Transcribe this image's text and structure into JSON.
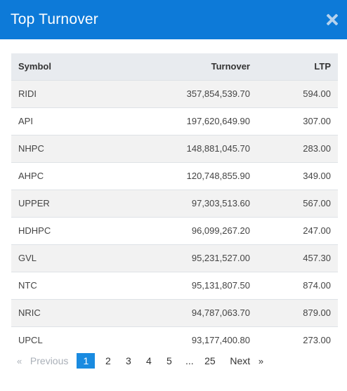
{
  "modal": {
    "title": "Top Turnover"
  },
  "table": {
    "headers": {
      "symbol": "Symbol",
      "turnover": "Turnover",
      "ltp": "LTP"
    },
    "rows": [
      {
        "symbol": "RIDI",
        "turnover": "357,854,539.70",
        "ltp": "594.00"
      },
      {
        "symbol": "API",
        "turnover": "197,620,649.90",
        "ltp": "307.00"
      },
      {
        "symbol": "NHPC",
        "turnover": "148,881,045.70",
        "ltp": "283.00"
      },
      {
        "symbol": "AHPC",
        "turnover": "120,748,855.90",
        "ltp": "349.00"
      },
      {
        "symbol": "UPPER",
        "turnover": "97,303,513.60",
        "ltp": "567.00"
      },
      {
        "symbol": "HDHPC",
        "turnover": "96,099,267.20",
        "ltp": "247.00"
      },
      {
        "symbol": "GVL",
        "turnover": "95,231,527.00",
        "ltp": "457.30"
      },
      {
        "symbol": "NTC",
        "turnover": "95,131,807.50",
        "ltp": "874.00"
      },
      {
        "symbol": "NRIC",
        "turnover": "94,787,063.70",
        "ltp": "879.00"
      },
      {
        "symbol": "UPCL",
        "turnover": "93,177,400.80",
        "ltp": "273.00"
      }
    ]
  },
  "pagination": {
    "prev_arrow": "«",
    "prev_label": "Previous",
    "pages": [
      "1",
      "2",
      "3",
      "4",
      "5",
      "...",
      "25"
    ],
    "current": "1",
    "next_label": "Next",
    "next_arrow": "»"
  },
  "colors": {
    "header_bg": "#0d7ad8",
    "active_page": "#1a8be0",
    "table_head_bg": "#e8ebef"
  }
}
